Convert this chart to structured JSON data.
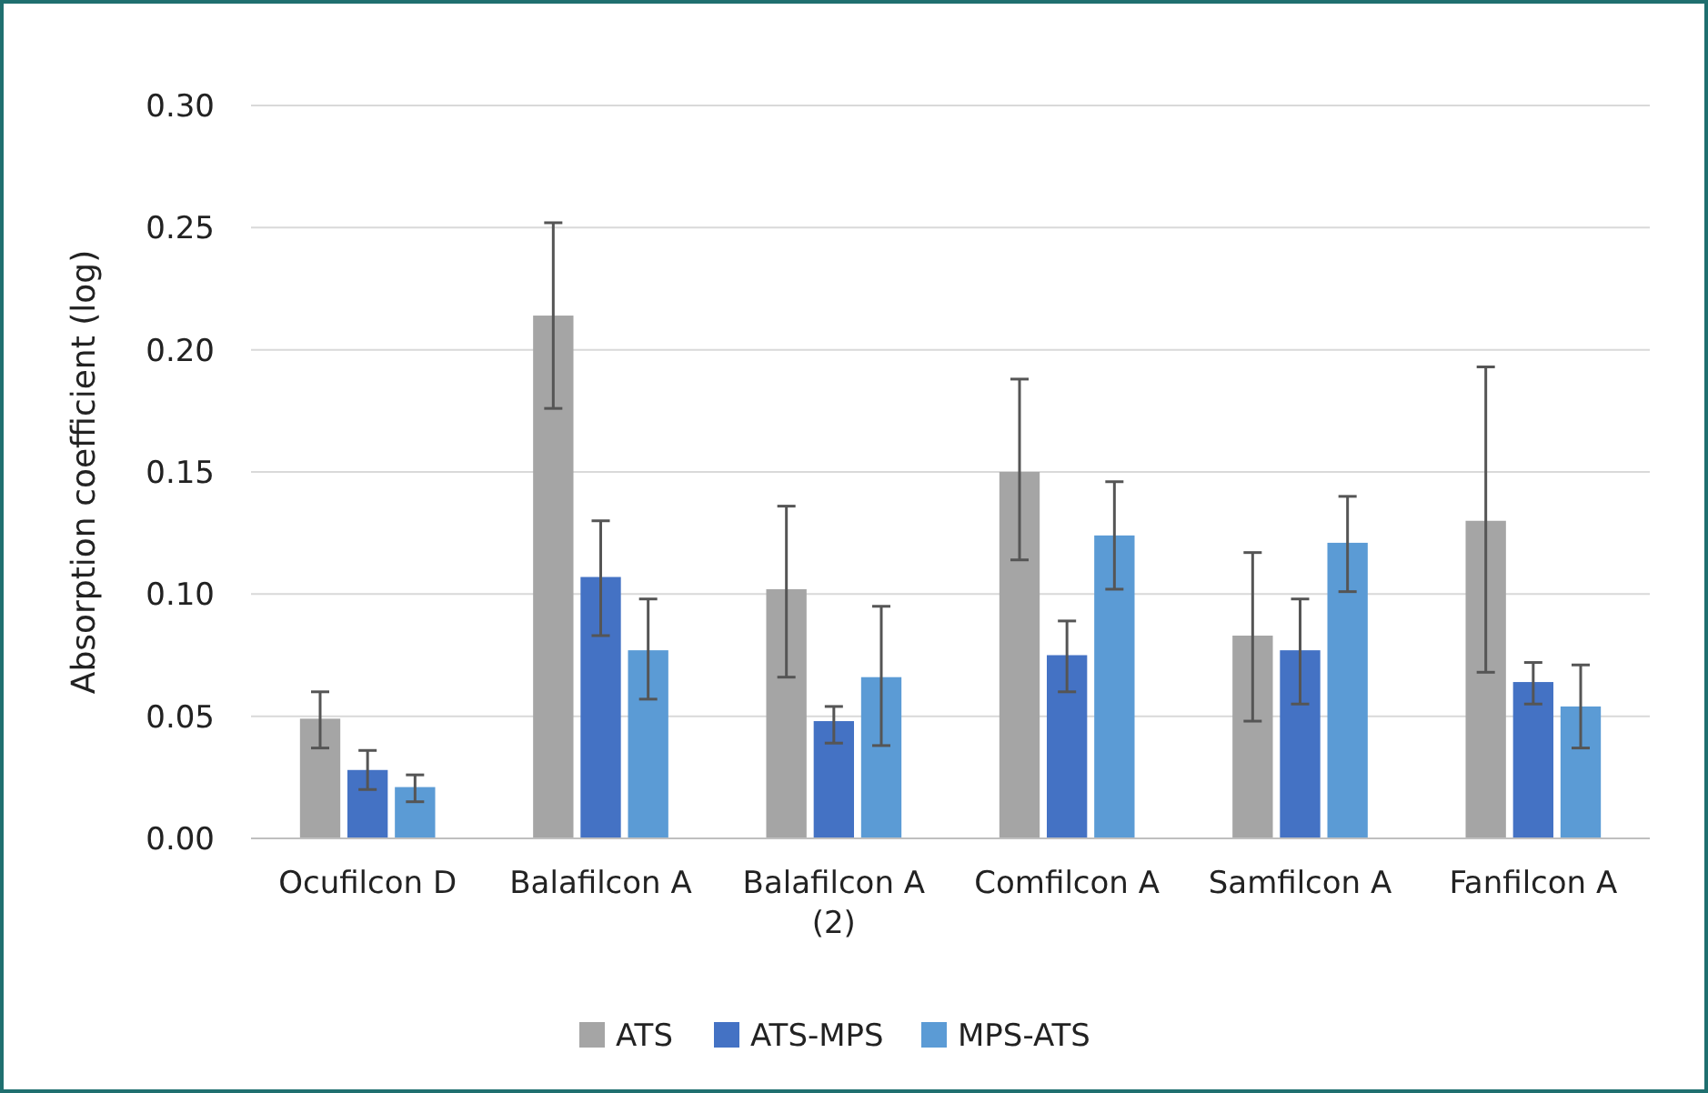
{
  "chart_data": {
    "type": "bar",
    "ylabel": "Absorption coefficient (log)",
    "categories": [
      "Ocufilcon D",
      "Balafilcon A",
      "Balafilcon A (2)",
      "Comfilcon A",
      "Samfilcon A",
      "Fanfilcon A"
    ],
    "series": [
      {
        "name": "ATS",
        "color": "#a5a5a5",
        "values": [
          0.049,
          0.214,
          0.102,
          0.15,
          0.083,
          0.13
        ],
        "errors": [
          [
            0.037,
            0.06
          ],
          [
            0.176,
            0.252
          ],
          [
            0.066,
            0.136
          ],
          [
            0.114,
            0.188
          ],
          [
            0.048,
            0.117
          ],
          [
            0.068,
            0.193
          ]
        ]
      },
      {
        "name": "ATS-MPS",
        "color": "#4472c4",
        "values": [
          0.028,
          0.107,
          0.048,
          0.075,
          0.077,
          0.064
        ],
        "errors": [
          [
            0.02,
            0.036
          ],
          [
            0.083,
            0.13
          ],
          [
            0.039,
            0.054
          ],
          [
            0.06,
            0.089
          ],
          [
            0.055,
            0.098
          ],
          [
            0.055,
            0.072
          ]
        ]
      },
      {
        "name": "MPS-ATS",
        "color": "#5b9bd5",
        "values": [
          0.021,
          0.077,
          0.066,
          0.124,
          0.121,
          0.054
        ],
        "errors": [
          [
            0.015,
            0.026
          ],
          [
            0.057,
            0.098
          ],
          [
            0.038,
            0.095
          ],
          [
            0.102,
            0.146
          ],
          [
            0.101,
            0.14
          ],
          [
            0.037,
            0.071
          ]
        ]
      }
    ],
    "ylim": [
      0,
      0.3
    ],
    "yticks": [
      {
        "value": 0,
        "label": "0.00"
      },
      {
        "value": 0.05,
        "label": "0.05"
      },
      {
        "value": 0.1,
        "label": "0.10"
      },
      {
        "value": 0.15,
        "label": "0.15"
      },
      {
        "value": 0.2,
        "label": "0.20"
      },
      {
        "value": 0.25,
        "label": "0.25"
      },
      {
        "value": 0.3,
        "label": "0.30"
      }
    ],
    "grid": "y",
    "legend": "bottom"
  }
}
